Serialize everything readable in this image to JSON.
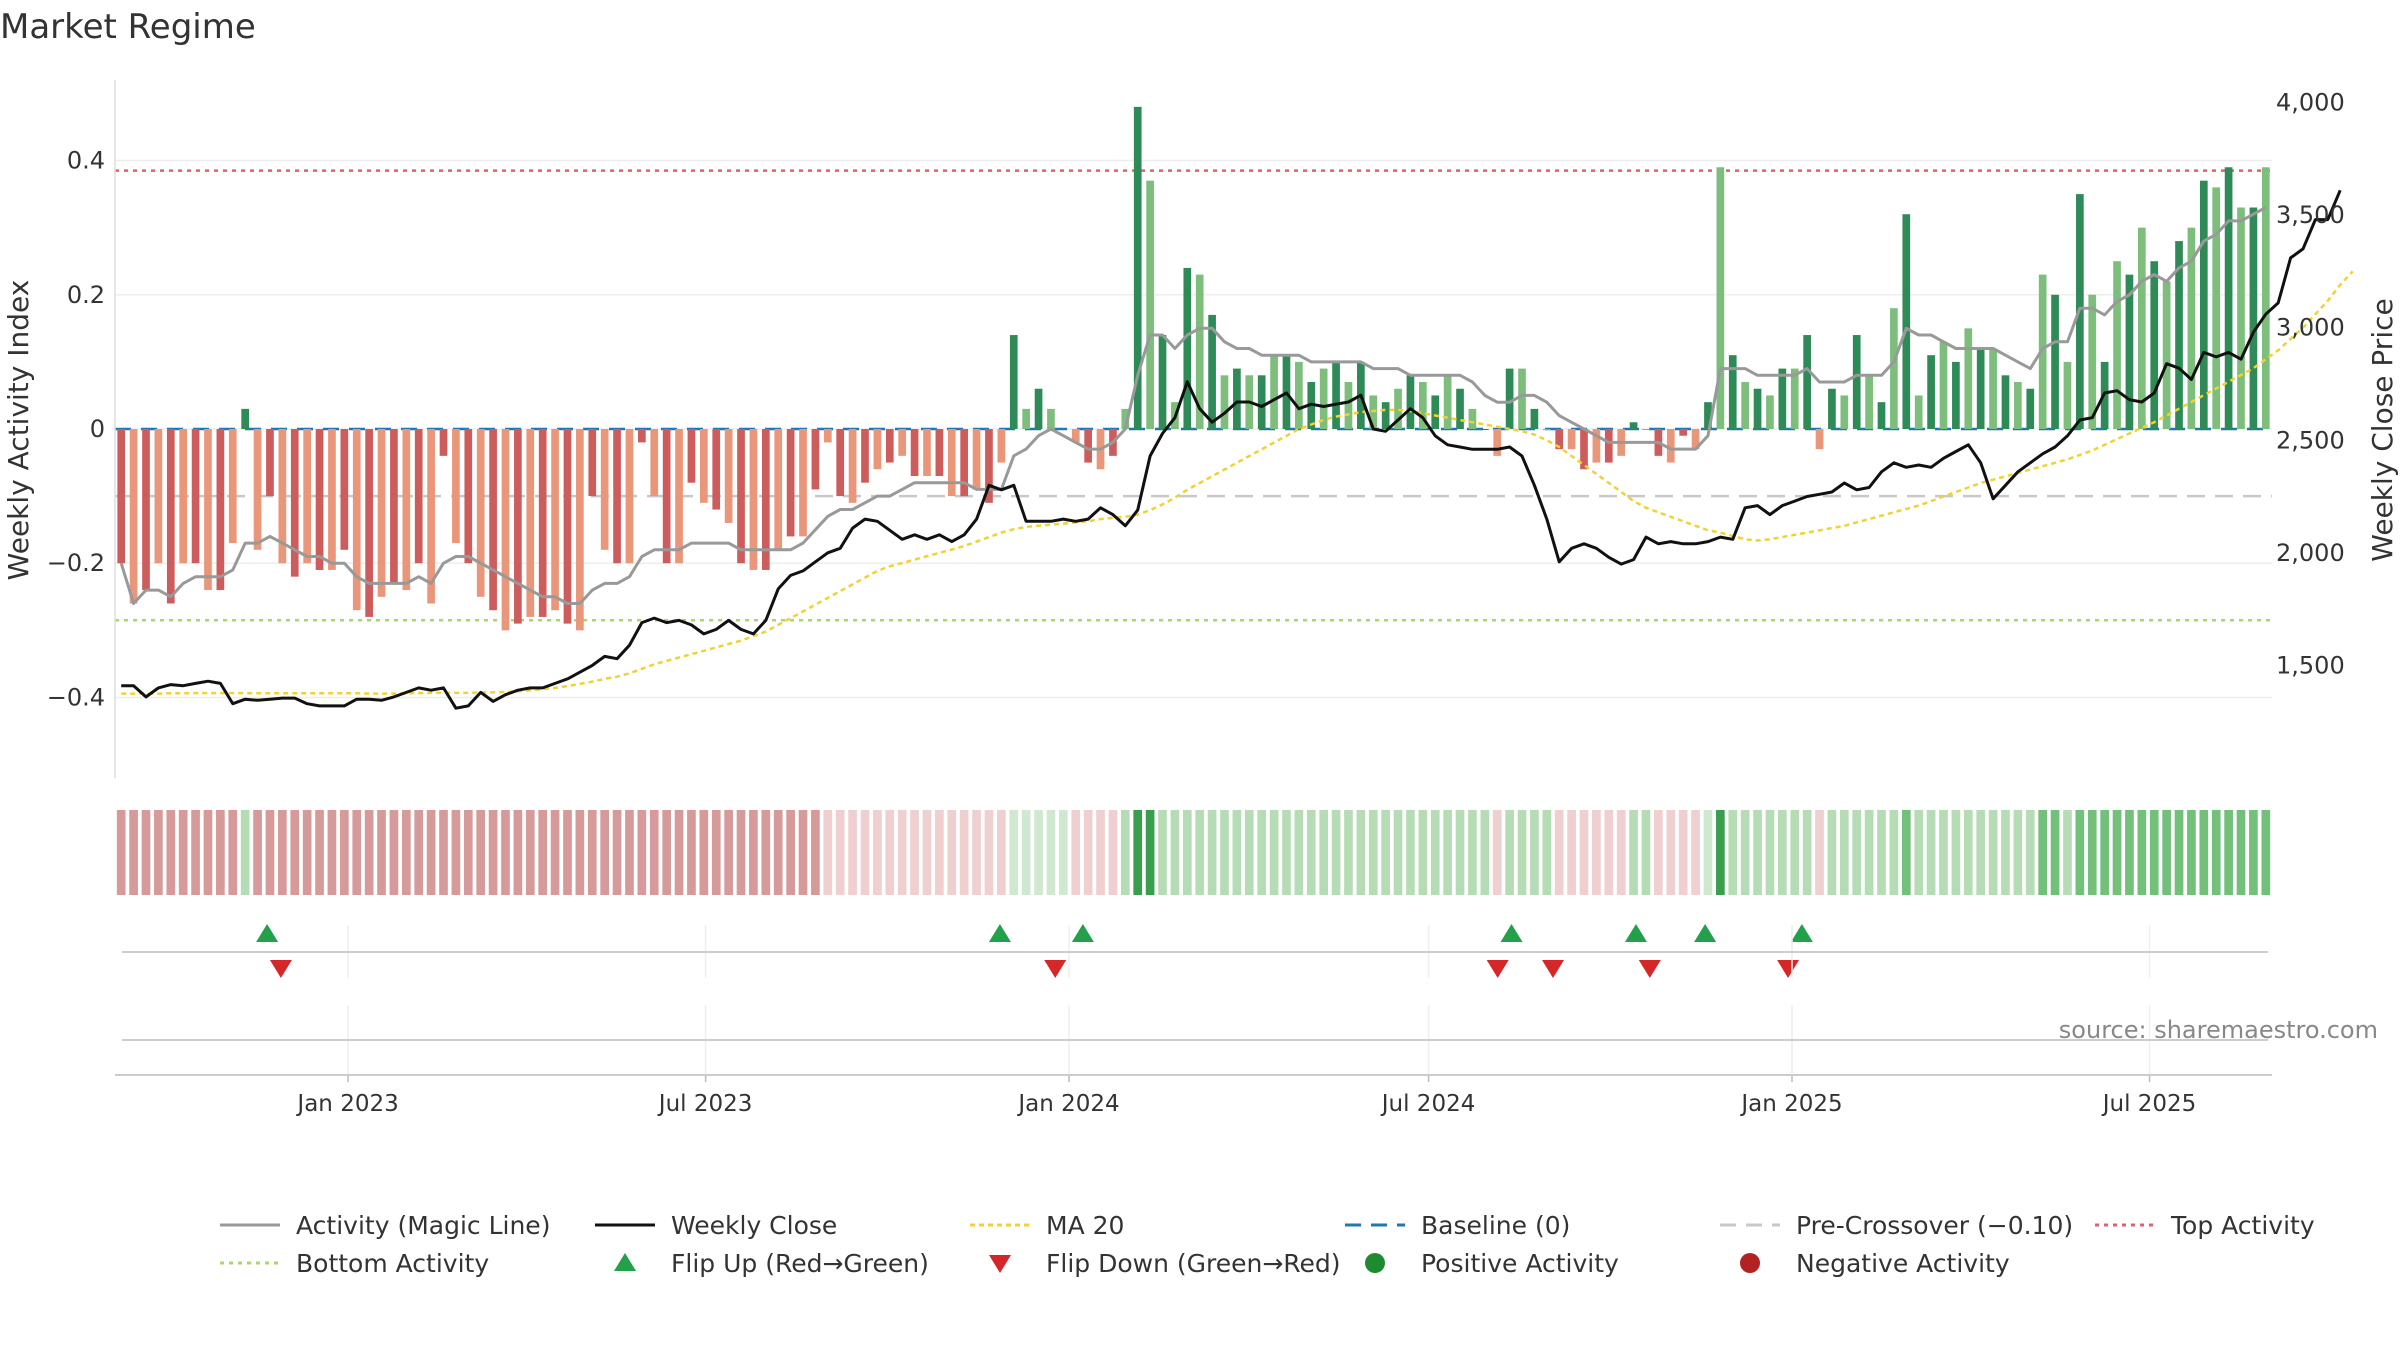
{
  "chart_data": {
    "type": "bar",
    "title": "Market Regime",
    "source": "source: sharemaestro.com",
    "ylabel_left": "Weekly Activity Index",
    "ylabel_right": "Weekly Close Price",
    "left_axis": {
      "ylim": [
        -0.52,
        0.52
      ],
      "ticks": [
        -0.4,
        -0.2,
        0,
        0.2,
        0.4
      ],
      "tick_labels": [
        "−0.4",
        "−0.2",
        "0",
        "0.2",
        "0.4"
      ]
    },
    "right_axis": {
      "ylim": [
        1000,
        4100
      ],
      "ticks": [
        1500,
        2000,
        2500,
        3000,
        3500,
        4000
      ],
      "tick_labels": [
        "1,500",
        "2,000",
        "2,500",
        "3,000",
        "3,500",
        "4,000"
      ]
    },
    "x_axis": {
      "start": "2022-09-05",
      "end": "2025-09-01",
      "ticks": [
        "2023-01-01",
        "2023-07-01",
        "2024-01-01",
        "2024-07-01",
        "2025-01-01",
        "2025-07-01"
      ],
      "tick_labels": [
        "Jan 2023",
        "Jul 2023",
        "Jan 2024",
        "Jul 2024",
        "Jan 2025",
        "Jul 2025"
      ]
    },
    "reference_lines": {
      "top_activity": 0.385,
      "bottom_activity": -0.285,
      "pre_crossover": -0.1,
      "baseline": 0
    },
    "colors": {
      "pos_strong": "#2e8b57",
      "pos_light": "#7dbe7d",
      "neg_strong": "#cd5c5c",
      "neg_light": "#e9967a",
      "top": "#e06070",
      "bottom": "#a8d86a",
      "pre": "#c8c8c8",
      "baseline": "#1f77b4",
      "magic": "#999999",
      "close": "#111111",
      "ma": "#f2d230",
      "flip_up": "#22a04a",
      "flip_down": "#d62728",
      "pos_marker": "#1e8c2e",
      "neg_marker": "#b22222"
    },
    "series": [
      {
        "name": "Weekly Activity",
        "kind": "bar",
        "values": [
          -0.2,
          -0.26,
          -0.24,
          -0.2,
          -0.26,
          -0.2,
          -0.2,
          -0.24,
          -0.24,
          -0.17,
          0.03,
          -0.18,
          -0.1,
          -0.2,
          -0.22,
          -0.2,
          -0.21,
          -0.21,
          -0.18,
          -0.27,
          -0.28,
          -0.25,
          -0.23,
          -0.24,
          -0.2,
          -0.26,
          -0.04,
          -0.17,
          -0.2,
          -0.25,
          -0.27,
          -0.3,
          -0.29,
          -0.28,
          -0.28,
          -0.27,
          -0.29,
          -0.3,
          -0.1,
          -0.18,
          -0.2,
          -0.2,
          -0.02,
          -0.1,
          -0.2,
          -0.2,
          -0.08,
          -0.11,
          -0.12,
          -0.14,
          -0.2,
          -0.21,
          -0.21,
          -0.18,
          -0.16,
          -0.16,
          -0.09,
          -0.02,
          -0.1,
          -0.11,
          -0.08,
          -0.06,
          -0.05,
          -0.04,
          -0.07,
          -0.07,
          -0.07,
          -0.1,
          -0.1,
          -0.09,
          -0.11,
          -0.05,
          0.14,
          0.03,
          0.06,
          0.03,
          0.0,
          -0.02,
          -0.05,
          -0.06,
          -0.04,
          0.03,
          0.48,
          0.37,
          0.14,
          0.04,
          0.24,
          0.23,
          0.17,
          0.08,
          0.09,
          0.08,
          0.08,
          0.11,
          0.11,
          0.1,
          0.07,
          0.09,
          0.1,
          0.07,
          0.1,
          0.05,
          0.04,
          0.06,
          0.08,
          0.07,
          0.05,
          0.08,
          0.06,
          0.03,
          0.0,
          -0.04,
          0.09,
          0.09,
          0.03,
          0.0,
          -0.03,
          -0.03,
          -0.06,
          -0.05,
          -0.05,
          -0.04,
          0.01,
          0.0,
          -0.04,
          -0.05,
          -0.01,
          -0.03,
          0.04,
          0.39,
          0.11,
          0.07,
          0.06,
          0.05,
          0.09,
          0.09,
          0.14,
          -0.03,
          0.06,
          0.05,
          0.14,
          0.08,
          0.04,
          0.18,
          0.32,
          0.05,
          0.11,
          0.13,
          0.1,
          0.15,
          0.12,
          0.12,
          0.08,
          0.07,
          0.06,
          0.23,
          0.2,
          0.1,
          0.35,
          0.2,
          0.1,
          0.25,
          0.23,
          0.3,
          0.25,
          0.22,
          0.28,
          0.3,
          0.37,
          0.36,
          0.39,
          0.33,
          0.33,
          0.39
        ]
      },
      {
        "name": "Activity (Magic Line)",
        "kind": "line",
        "values": [
          -0.2,
          -0.26,
          -0.24,
          -0.24,
          -0.25,
          -0.23,
          -0.22,
          -0.22,
          -0.22,
          -0.21,
          -0.17,
          -0.17,
          -0.16,
          -0.17,
          -0.18,
          -0.19,
          -0.19,
          -0.2,
          -0.2,
          -0.22,
          -0.23,
          -0.23,
          -0.23,
          -0.23,
          -0.22,
          -0.23,
          -0.2,
          -0.19,
          -0.19,
          -0.2,
          -0.21,
          -0.22,
          -0.23,
          -0.24,
          -0.25,
          -0.25,
          -0.26,
          -0.26,
          -0.24,
          -0.23,
          -0.23,
          -0.22,
          -0.19,
          -0.18,
          -0.18,
          -0.18,
          -0.17,
          -0.17,
          -0.17,
          -0.17,
          -0.18,
          -0.18,
          -0.18,
          -0.18,
          -0.18,
          -0.17,
          -0.15,
          -0.13,
          -0.12,
          -0.12,
          -0.11,
          -0.1,
          -0.1,
          -0.09,
          -0.08,
          -0.08,
          -0.08,
          -0.08,
          -0.08,
          -0.09,
          -0.09,
          -0.09,
          -0.04,
          -0.03,
          -0.01,
          0.0,
          -0.01,
          -0.02,
          -0.03,
          -0.03,
          -0.02,
          0.0,
          0.08,
          0.14,
          0.14,
          0.12,
          0.14,
          0.15,
          0.15,
          0.13,
          0.12,
          0.12,
          0.11,
          0.11,
          0.11,
          0.11,
          0.1,
          0.1,
          0.1,
          0.1,
          0.1,
          0.09,
          0.09,
          0.09,
          0.08,
          0.08,
          0.08,
          0.08,
          0.08,
          0.07,
          0.05,
          0.04,
          0.04,
          0.05,
          0.05,
          0.04,
          0.02,
          0.01,
          0.0,
          -0.01,
          -0.02,
          -0.02,
          -0.02,
          -0.02,
          -0.02,
          -0.03,
          -0.03,
          -0.03,
          -0.01,
          0.09,
          0.09,
          0.09,
          0.08,
          0.08,
          0.08,
          0.08,
          0.09,
          0.07,
          0.07,
          0.07,
          0.08,
          0.08,
          0.08,
          0.1,
          0.15,
          0.14,
          0.14,
          0.13,
          0.12,
          0.12,
          0.12,
          0.12,
          0.11,
          0.1,
          0.09,
          0.12,
          0.13,
          0.13,
          0.18,
          0.18,
          0.17,
          0.19,
          0.2,
          0.22,
          0.23,
          0.22,
          0.24,
          0.25,
          0.28,
          0.29,
          0.31,
          0.31,
          0.32,
          0.33
        ]
      },
      {
        "name": "Weekly Close",
        "kind": "line",
        "axis": "right",
        "values": [
          1410,
          1410,
          1360,
          1400,
          1415,
          1410,
          1420,
          1430,
          1420,
          1330,
          1350,
          1345,
          1350,
          1355,
          1355,
          1330,
          1320,
          1320,
          1320,
          1350,
          1350,
          1345,
          1360,
          1380,
          1400,
          1390,
          1400,
          1310,
          1320,
          1380,
          1340,
          1370,
          1390,
          1400,
          1400,
          1420,
          1440,
          1470,
          1500,
          1540,
          1530,
          1590,
          1690,
          1710,
          1690,
          1700,
          1680,
          1640,
          1660,
          1700,
          1660,
          1640,
          1700,
          1840,
          1900,
          1920,
          1960,
          2000,
          2020,
          2110,
          2150,
          2140,
          2100,
          2060,
          2080,
          2060,
          2080,
          2050,
          2080,
          2150,
          2300,
          2280,
          2300,
          2140,
          2140,
          2140,
          2150,
          2140,
          2150,
          2200,
          2170,
          2120,
          2190,
          2430,
          2530,
          2600,
          2760,
          2640,
          2580,
          2620,
          2670,
          2670,
          2650,
          2680,
          2710,
          2640,
          2660,
          2650,
          2660,
          2670,
          2700,
          2550,
          2540,
          2590,
          2640,
          2600,
          2520,
          2480,
          2470,
          2460,
          2460,
          2460,
          2470,
          2430,
          2300,
          2150,
          1960,
          2020,
          2040,
          2020,
          1980,
          1950,
          1970,
          2070,
          2040,
          2050,
          2040,
          2040,
          2050,
          2070,
          2060,
          2200,
          2210,
          2170,
          2210,
          2230,
          2250,
          2260,
          2270,
          2310,
          2280,
          2290,
          2360,
          2400,
          2380,
          2390,
          2380,
          2420,
          2450,
          2480,
          2400,
          2240,
          2300,
          2360,
          2400,
          2440,
          2470,
          2520,
          2590,
          2600,
          2710,
          2720,
          2680,
          2670,
          2710,
          2840,
          2820,
          2770,
          2890,
          2870,
          2890,
          2860,
          2980,
          3060,
          3110,
          3310,
          3350,
          3480,
          3480,
          3610
        ]
      },
      {
        "name": "MA 20",
        "kind": "line",
        "axis": "right",
        "values": [
          1375,
          1375,
          1375,
          1375,
          1376,
          1376,
          1377,
          1377,
          1377,
          1377,
          1377,
          1376,
          1376,
          1376,
          1376,
          1376,
          1376,
          1376,
          1376,
          1376,
          1375,
          1375,
          1375,
          1376,
          1377,
          1378,
          1379,
          1378,
          1378,
          1380,
          1380,
          1382,
          1385,
          1390,
          1395,
          1400,
          1408,
          1418,
          1428,
          1440,
          1450,
          1465,
          1485,
          1505,
          1520,
          1535,
          1550,
          1565,
          1580,
          1595,
          1610,
          1630,
          1650,
          1680,
          1710,
          1740,
          1770,
          1800,
          1830,
          1860,
          1890,
          1920,
          1940,
          1955,
          1970,
          1985,
          2000,
          2015,
          2030,
          2050,
          2070,
          2090,
          2105,
          2115,
          2120,
          2125,
          2130,
          2135,
          2140,
          2150,
          2155,
          2160,
          2170,
          2190,
          2215,
          2245,
          2280,
          2310,
          2340,
          2370,
          2400,
          2430,
          2460,
          2490,
          2520,
          2550,
          2570,
          2590,
          2605,
          2615,
          2625,
          2630,
          2635,
          2635,
          2630,
          2620,
          2610,
          2600,
          2590,
          2580,
          2570,
          2560,
          2550,
          2540,
          2525,
          2500,
          2470,
          2430,
          2390,
          2350,
          2310,
          2270,
          2230,
          2200,
          2180,
          2160,
          2140,
          2120,
          2100,
          2090,
          2075,
          2060,
          2055,
          2060,
          2070,
          2080,
          2090,
          2100,
          2110,
          2120,
          2135,
          2150,
          2165,
          2180,
          2195,
          2210,
          2230,
          2250,
          2270,
          2290,
          2310,
          2325,
          2340,
          2355,
          2370,
          2385,
          2400,
          2415,
          2435,
          2455,
          2480,
          2505,
          2530,
          2555,
          2580,
          2610,
          2640,
          2670,
          2700,
          2730,
          2760,
          2790,
          2820,
          2860,
          2900,
          2950,
          3000,
          3060,
          3120,
          3190,
          3250
        ]
      }
    ],
    "regime_strip": {
      "levels": [
        -1,
        -1,
        -1,
        -1,
        -1,
        -1,
        -1,
        -1,
        -1,
        -1,
        1,
        -1,
        -1,
        -1,
        -1,
        -1,
        -1,
        -1,
        -1,
        -1,
        -1,
        -1,
        -1,
        -1,
        -1,
        -1,
        -1,
        -1,
        -1,
        -1,
        -1,
        -1,
        -1,
        -1,
        -1,
        -1,
        -1,
        -1,
        -1,
        -1,
        -1,
        -1,
        -1,
        -1,
        -1,
        -1,
        -1,
        -1,
        -1,
        -1,
        -1,
        -1,
        -1,
        -1,
        -1,
        -1,
        -1,
        -2,
        -2,
        -2,
        -2,
        -2,
        -2,
        -2,
        -2,
        -2,
        -2,
        -2,
        -2,
        -2,
        -2,
        -2,
        2,
        2,
        2,
        2,
        2,
        -2,
        -2,
        -2,
        -2,
        1,
        4,
        4,
        1,
        1,
        1,
        1,
        1,
        1,
        1,
        1,
        1,
        1,
        1,
        1,
        1,
        1,
        1,
        1,
        1,
        1,
        1,
        1,
        1,
        1,
        1,
        1,
        1,
        1,
        1,
        -2,
        1,
        1,
        1,
        1,
        -2,
        -2,
        -2,
        -2,
        -2,
        -2,
        1,
        1,
        -2,
        -2,
        -2,
        -2,
        2,
        4,
        1,
        1,
        1,
        1,
        1,
        1,
        1,
        -2,
        1,
        1,
        1,
        1,
        1,
        1,
        3,
        1,
        1,
        1,
        1,
        1,
        1,
        1,
        1,
        1,
        1,
        3,
        3,
        1,
        3,
        3,
        3,
        3,
        3,
        3,
        3,
        3,
        3,
        3,
        3,
        3,
        3,
        3,
        3,
        3
      ]
    },
    "flip_up": [
      "2022-11-21",
      "2023-11-27",
      "2024-01-08",
      "2024-08-12",
      "2024-10-14",
      "2024-11-18",
      "2025-01-06"
    ],
    "flip_down": [
      "2022-11-28",
      "2023-12-25",
      "2024-08-05",
      "2024-09-02",
      "2024-10-21",
      "2024-12-30"
    ],
    "legend": {
      "row1": [
        "Activity (Magic Line)",
        "Weekly Close",
        "MA 20",
        "Baseline (0)",
        "Pre-Crossover (−0.10)",
        "Top Activity"
      ],
      "row2": [
        "Bottom Activity",
        "Flip Up (Red→Green)",
        "Flip Down (Green→Red)",
        "Positive Activity",
        "Negative Activity"
      ]
    }
  }
}
